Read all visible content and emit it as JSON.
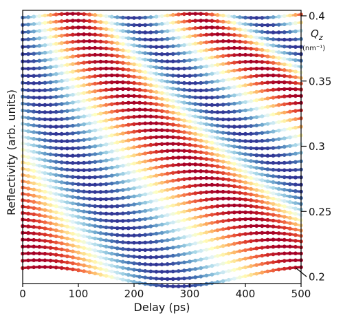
{
  "chart_data": {
    "type": "line",
    "title": "",
    "xlabel": "Delay (ps)",
    "ylabel": "Reflectivity (arb. units)",
    "xlim": [
      0,
      500
    ],
    "x_ticks": [
      "0",
      "100",
      "200",
      "300",
      "400",
      "500"
    ],
    "right_axis": {
      "label_symbol": "Q",
      "label_subscript": "z",
      "label_unit": "(nm⁻¹)",
      "ticks": [
        "0.4",
        "0.35",
        "0.3",
        "0.25",
        "0.2"
      ]
    },
    "grid": false,
    "legend": "none",
    "colormap": [
      "#313695",
      "#4575b4",
      "#74add1",
      "#abd9e9",
      "#e0f3f8",
      "#ffffbf",
      "#fee090",
      "#fdae61",
      "#f46d43",
      "#d73027",
      "#a50026"
    ],
    "delay_points_ps": [
      0,
      10,
      20,
      30,
      40,
      50,
      60,
      70,
      80,
      90,
      100,
      110,
      120,
      130,
      140,
      150,
      160,
      170,
      180,
      190,
      200,
      210,
      220,
      230,
      240,
      250,
      260,
      270,
      280,
      290,
      300,
      310,
      320,
      330,
      340,
      350,
      360,
      370,
      380,
      390,
      400,
      410,
      420,
      430,
      440,
      450,
      460,
      470,
      480,
      490,
      500
    ],
    "curve_count": 38,
    "offset_series_note_qz_range": [
      0.2,
      0.4
    ]
  }
}
